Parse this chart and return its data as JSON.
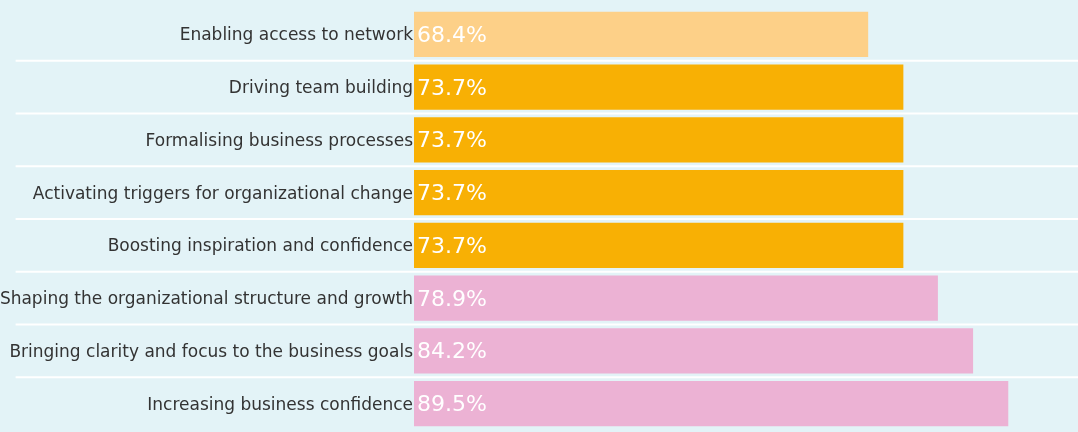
{
  "chart_data": {
    "type": "bar",
    "orientation": "horizontal",
    "categories": [
      "Enabling access to network",
      "Driving team building",
      "Formalising business processes",
      "Activating triggers for organizational change",
      "Boosting inspiration and confidence",
      "Shaping the organizational structure and growth",
      "Bringing clarity and focus to the business goals",
      "Increasing business confidence"
    ],
    "values": [
      68.4,
      73.7,
      73.7,
      73.7,
      73.7,
      78.9,
      84.2,
      89.5
    ],
    "colors": [
      "#fdd088",
      "#f8b004",
      "#f8b004",
      "#f8b004",
      "#f8b004",
      "#ecb2d4",
      "#ecb2d4",
      "#ecb2d4"
    ],
    "value_labels": [
      "68.4%",
      "73.7%",
      "73.7%",
      "73.7%",
      "73.7%",
      "78.9%",
      "84.2%",
      "89.5%"
    ],
    "xlim": [
      0,
      100
    ],
    "tick_labels": "y",
    "grid": false,
    "legend": false
  }
}
